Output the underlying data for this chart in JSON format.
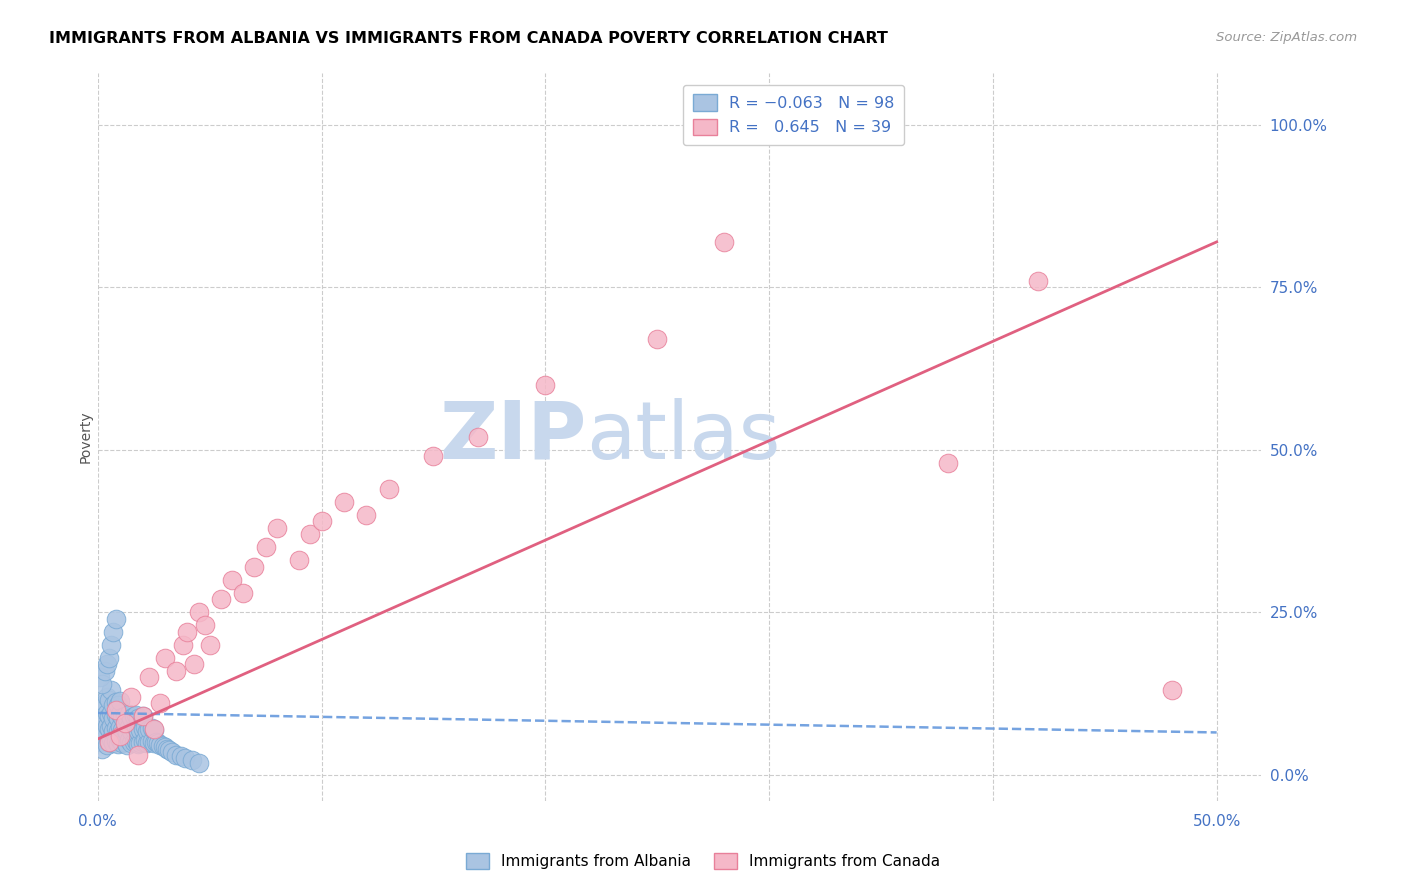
{
  "title": "IMMIGRANTS FROM ALBANIA VS IMMIGRANTS FROM CANADA POVERTY CORRELATION CHART",
  "source": "Source: ZipAtlas.com",
  "ylabel": "Poverty",
  "yticks": [
    "0.0%",
    "25.0%",
    "50.0%",
    "75.0%",
    "100.0%"
  ],
  "ytick_vals": [
    0.0,
    0.25,
    0.5,
    0.75,
    1.0
  ],
  "xtick_labels": [
    "0.0%",
    "50.0%"
  ],
  "xtick_vals": [
    0.0,
    0.5
  ],
  "xlim": [
    0.0,
    0.52
  ],
  "ylim": [
    -0.04,
    1.08
  ],
  "albania_color": "#aac4e2",
  "canada_color": "#f5b8c8",
  "albania_edge": "#7aaad4",
  "canada_edge": "#e8809a",
  "albania_R": -0.063,
  "albania_N": 98,
  "canada_R": 0.645,
  "canada_N": 39,
  "watermark_zip": "ZIP",
  "watermark_atlas": "atlas",
  "watermark_color": "#c8d8ed",
  "background": "#ffffff",
  "grid_color": "#cccccc",
  "legend_text_color": "#4472c4",
  "axis_label_color": "#4472c4",
  "albania_line_color": "#6699dd",
  "canada_line_color": "#e06080",
  "albania_scatter_x": [
    0.0,
    0.001,
    0.001,
    0.002,
    0.002,
    0.002,
    0.003,
    0.003,
    0.003,
    0.003,
    0.004,
    0.004,
    0.004,
    0.004,
    0.005,
    0.005,
    0.005,
    0.005,
    0.006,
    0.006,
    0.006,
    0.006,
    0.007,
    0.007,
    0.007,
    0.007,
    0.008,
    0.008,
    0.008,
    0.008,
    0.009,
    0.009,
    0.009,
    0.009,
    0.01,
    0.01,
    0.01,
    0.01,
    0.011,
    0.011,
    0.011,
    0.012,
    0.012,
    0.012,
    0.013,
    0.013,
    0.013,
    0.014,
    0.014,
    0.014,
    0.015,
    0.015,
    0.015,
    0.016,
    0.016,
    0.016,
    0.017,
    0.017,
    0.017,
    0.018,
    0.018,
    0.018,
    0.019,
    0.019,
    0.02,
    0.02,
    0.02,
    0.021,
    0.021,
    0.022,
    0.022,
    0.023,
    0.023,
    0.024,
    0.024,
    0.025,
    0.025,
    0.026,
    0.027,
    0.028,
    0.029,
    0.03,
    0.031,
    0.032,
    0.033,
    0.035,
    0.037,
    0.039,
    0.042,
    0.045,
    0.001,
    0.002,
    0.003,
    0.004,
    0.005,
    0.006,
    0.007,
    0.008
  ],
  "albania_scatter_y": [
    0.06,
    0.05,
    0.08,
    0.04,
    0.07,
    0.1,
    0.055,
    0.065,
    0.085,
    0.11,
    0.045,
    0.075,
    0.095,
    0.12,
    0.05,
    0.07,
    0.09,
    0.115,
    0.055,
    0.075,
    0.095,
    0.13,
    0.048,
    0.068,
    0.088,
    0.108,
    0.052,
    0.072,
    0.092,
    0.112,
    0.047,
    0.067,
    0.087,
    0.107,
    0.053,
    0.073,
    0.093,
    0.113,
    0.049,
    0.069,
    0.089,
    0.051,
    0.071,
    0.091,
    0.046,
    0.066,
    0.086,
    0.054,
    0.074,
    0.094,
    0.048,
    0.068,
    0.088,
    0.05,
    0.07,
    0.09,
    0.052,
    0.072,
    0.092,
    0.047,
    0.067,
    0.087,
    0.049,
    0.069,
    0.051,
    0.071,
    0.091,
    0.053,
    0.073,
    0.048,
    0.068,
    0.05,
    0.07,
    0.052,
    0.072,
    0.049,
    0.069,
    0.051,
    0.048,
    0.046,
    0.044,
    0.042,
    0.04,
    0.038,
    0.035,
    0.03,
    0.028,
    0.025,
    0.022,
    0.018,
    0.15,
    0.14,
    0.16,
    0.17,
    0.18,
    0.2,
    0.22,
    0.24
  ],
  "canada_scatter_x": [
    0.005,
    0.008,
    0.01,
    0.012,
    0.015,
    0.018,
    0.02,
    0.023,
    0.025,
    0.028,
    0.03,
    0.035,
    0.038,
    0.04,
    0.043,
    0.045,
    0.048,
    0.05,
    0.055,
    0.06,
    0.065,
    0.07,
    0.075,
    0.08,
    0.09,
    0.095,
    0.1,
    0.11,
    0.12,
    0.13,
    0.15,
    0.17,
    0.2,
    0.25,
    0.28,
    0.32,
    0.38,
    0.42,
    0.48
  ],
  "canada_scatter_y": [
    0.05,
    0.1,
    0.06,
    0.08,
    0.12,
    0.03,
    0.09,
    0.15,
    0.07,
    0.11,
    0.18,
    0.16,
    0.2,
    0.22,
    0.17,
    0.25,
    0.23,
    0.2,
    0.27,
    0.3,
    0.28,
    0.32,
    0.35,
    0.38,
    0.33,
    0.37,
    0.39,
    0.42,
    0.4,
    0.44,
    0.49,
    0.52,
    0.6,
    0.67,
    0.82,
    0.99,
    0.48,
    0.76,
    0.13
  ],
  "albania_line_x": [
    0.0,
    0.5
  ],
  "albania_line_y": [
    0.095,
    0.065
  ],
  "canada_line_x": [
    0.0,
    0.5
  ],
  "canada_line_y": [
    0.055,
    0.82
  ]
}
